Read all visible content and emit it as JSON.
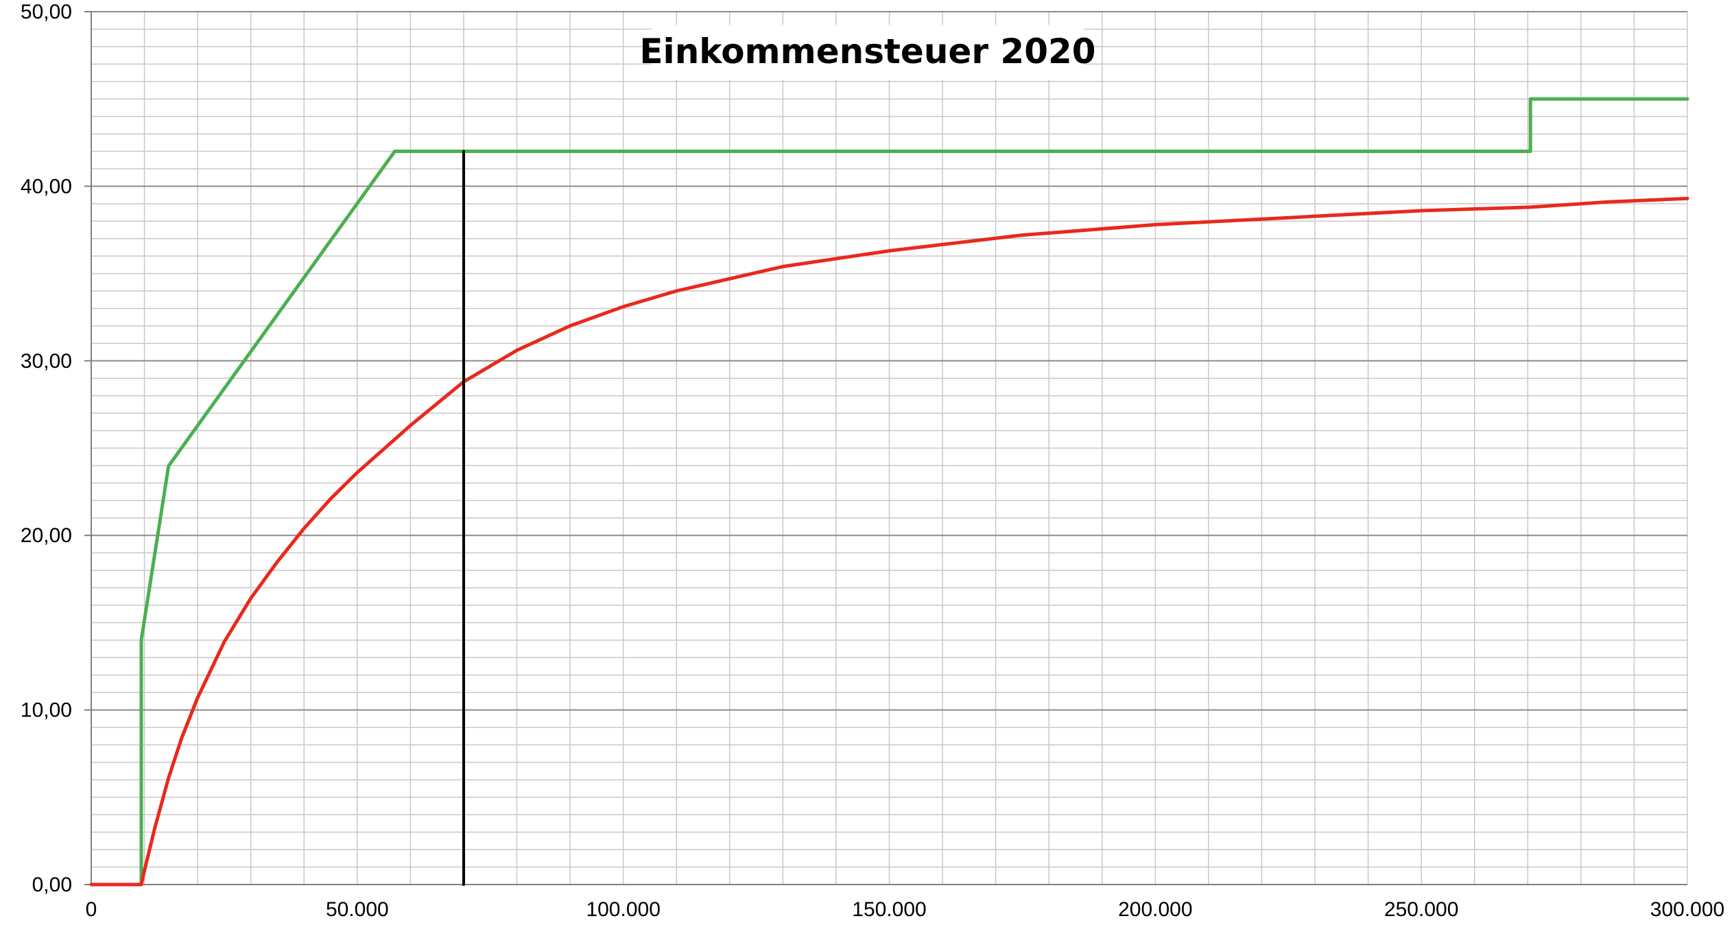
{
  "chart_data": {
    "type": "line",
    "title": "Einkommensteuer 2020",
    "xlabel": "",
    "ylabel": "",
    "xlim": [
      0,
      300000
    ],
    "ylim": [
      0,
      50
    ],
    "x_ticks": [
      0,
      50000,
      100000,
      150000,
      200000,
      250000,
      300000
    ],
    "x_tick_labels": [
      "0",
      "50.000",
      "100.000",
      "150.000",
      "200.000",
      "250.000",
      "300.000"
    ],
    "y_ticks": [
      0,
      10,
      20,
      30,
      40,
      50
    ],
    "y_tick_labels": [
      "0,00",
      "10,00",
      "20,00",
      "30,00",
      "40,00",
      "50,00"
    ],
    "grid": true,
    "legend": "none",
    "series": [
      {
        "color": "#4CAF50",
        "x": [
          0,
          9408,
          9408,
          14532,
          57051,
          270500,
          270500,
          300000
        ],
        "y": [
          0,
          0,
          14,
          23.97,
          42,
          42,
          45,
          45
        ]
      },
      {
        "color": "#E8291C",
        "x": [
          0,
          9408,
          10000,
          12000,
          14532,
          17000,
          20000,
          25000,
          30000,
          35000,
          40000,
          45000,
          50000,
          57051,
          60000,
          70000,
          80000,
          90000,
          100000,
          110000,
          120000,
          130000,
          150000,
          175000,
          200000,
          225000,
          250000,
          270500,
          285000,
          300000
        ],
        "y": [
          0,
          0,
          0.8,
          3.3,
          6.1,
          8.4,
          10.7,
          13.9,
          16.4,
          18.5,
          20.4,
          22.1,
          23.6,
          25.5,
          26.3,
          28.8,
          30.6,
          32.0,
          33.1,
          34.0,
          34.7,
          35.4,
          36.3,
          37.2,
          37.8,
          38.2,
          38.6,
          38.8,
          39.1,
          39.3
        ]
      },
      {
        "color": "#000000",
        "x": [
          70000,
          70000
        ],
        "y": [
          0,
          42
        ]
      }
    ]
  }
}
